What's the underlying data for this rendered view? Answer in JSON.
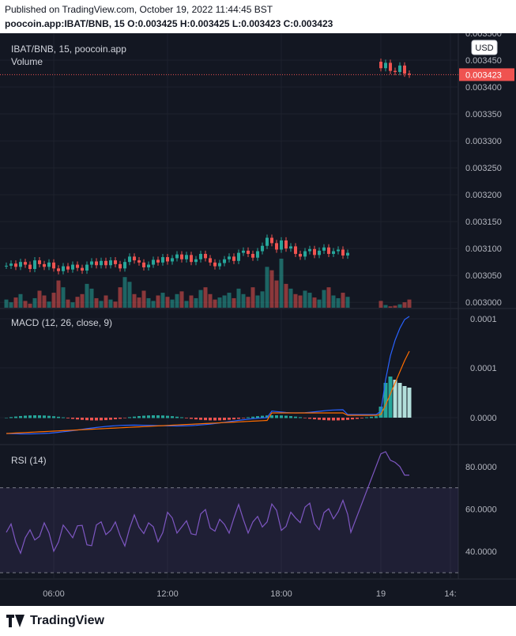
{
  "header": {
    "published": "Published on TradingView.com, October 19, 2022 11:44:45 BST",
    "ohlc": "poocoin.app:IBAT/BNB, 15  O:0.003425 H:0.003425 L:0.003423 C:0.003423"
  },
  "footer": {
    "brand": "TradingView"
  },
  "colors": {
    "up": "#26a69a",
    "down": "#ef5350",
    "macd": "#2962ff",
    "signal": "#ff6d00",
    "rsi": "#7e57c2",
    "bg": "#131722"
  },
  "chart_data": [
    {
      "type": "candlestick",
      "title": "IBAT/BNB, 15, poocoin.app",
      "subtitle": "Volume",
      "currency_button": "USD",
      "last_price_label": "0.003423",
      "ylim": [
        0.00299,
        0.0035
      ],
      "y_ticks": [
        0.003,
        0.00305,
        0.0031,
        0.00315,
        0.0032,
        0.00325,
        0.0033,
        0.00335,
        0.0034,
        0.00345,
        0.0035
      ],
      "y_tick_labels": [
        "0.003000",
        "0.003050",
        "0.003100",
        "0.003150",
        "0.003200",
        "0.003250",
        "0.003300",
        "0.003350",
        "0.003400",
        "0.003450",
        "0.003500"
      ],
      "x_tick_labels": [
        "06:00",
        "12:00",
        "18:00",
        "19",
        "14:"
      ],
      "last_price": 0.003423,
      "closes": [
        0.003068,
        0.003072,
        0.003066,
        0.003075,
        0.00307,
        0.003062,
        0.003078,
        0.003071,
        0.003066,
        0.003074,
        0.003063,
        0.003058,
        0.003067,
        0.003061,
        0.00307,
        0.003064,
        0.003059,
        0.00307,
        0.003076,
        0.003069,
        0.003077,
        0.003069,
        0.003078,
        0.003071,
        0.003063,
        0.003075,
        0.003085,
        0.003078,
        0.003074,
        0.003065,
        0.00307,
        0.003079,
        0.003074,
        0.003084,
        0.003076,
        0.003082,
        0.003089,
        0.00308,
        0.003088,
        0.003075,
        0.00308,
        0.00309,
        0.003082,
        0.003074,
        0.003067,
        0.003073,
        0.00308,
        0.003085,
        0.003077,
        0.003092,
        0.003096,
        0.00309,
        0.003083,
        0.003095,
        0.003105,
        0.00312,
        0.00311,
        0.003098,
        0.003115,
        0.0031,
        0.003104,
        0.00309,
        0.003085,
        0.003095,
        0.003099,
        0.003088,
        0.003096,
        0.003102,
        0.00309,
        0.003095,
        0.003098,
        0.003087,
        0.003092,
        0.00309,
        0.00309,
        0.00309,
        0.00309,
        0.00309,
        0.00309,
        0.003435,
        0.003445,
        0.00343,
        0.003428,
        0.00344,
        0.003425,
        0.003423
      ],
      "volumes": [
        12,
        8,
        15,
        20,
        10,
        6,
        14,
        25,
        18,
        9,
        22,
        40,
        30,
        12,
        8,
        16,
        20,
        35,
        28,
        14,
        10,
        18,
        12,
        9,
        30,
        45,
        38,
        20,
        15,
        25,
        14,
        10,
        18,
        22,
        16,
        12,
        20,
        24,
        10,
        18,
        14,
        26,
        30,
        20,
        12,
        15,
        18,
        22,
        14,
        28,
        20,
        16,
        30,
        18,
        24,
        60,
        55,
        40,
        72,
        35,
        28,
        20,
        18,
        25,
        22,
        15,
        12,
        26,
        30,
        18,
        14,
        22,
        16,
        20,
        45,
        28,
        22,
        18,
        20,
        10,
        4,
        2,
        3,
        5,
        8,
        12
      ]
    },
    {
      "type": "line",
      "title": "MACD (12, 26, close, 9)",
      "y_tick_labels": [
        "0.0001",
        "0.0001",
        "0.0000"
      ],
      "y_ticks": [
        0.0001,
        5e-05,
        0.0
      ],
      "ylim": [
        -1.8e-05,
        0.0001
      ]
    },
    {
      "type": "line",
      "title": "RSI (14)",
      "y_tick_labels": [
        "80.0000",
        "60.0000",
        "40.0000"
      ],
      "y_ticks": [
        80,
        60,
        40
      ],
      "ylim": [
        27,
        90
      ],
      "band": [
        30,
        70
      ]
    }
  ]
}
